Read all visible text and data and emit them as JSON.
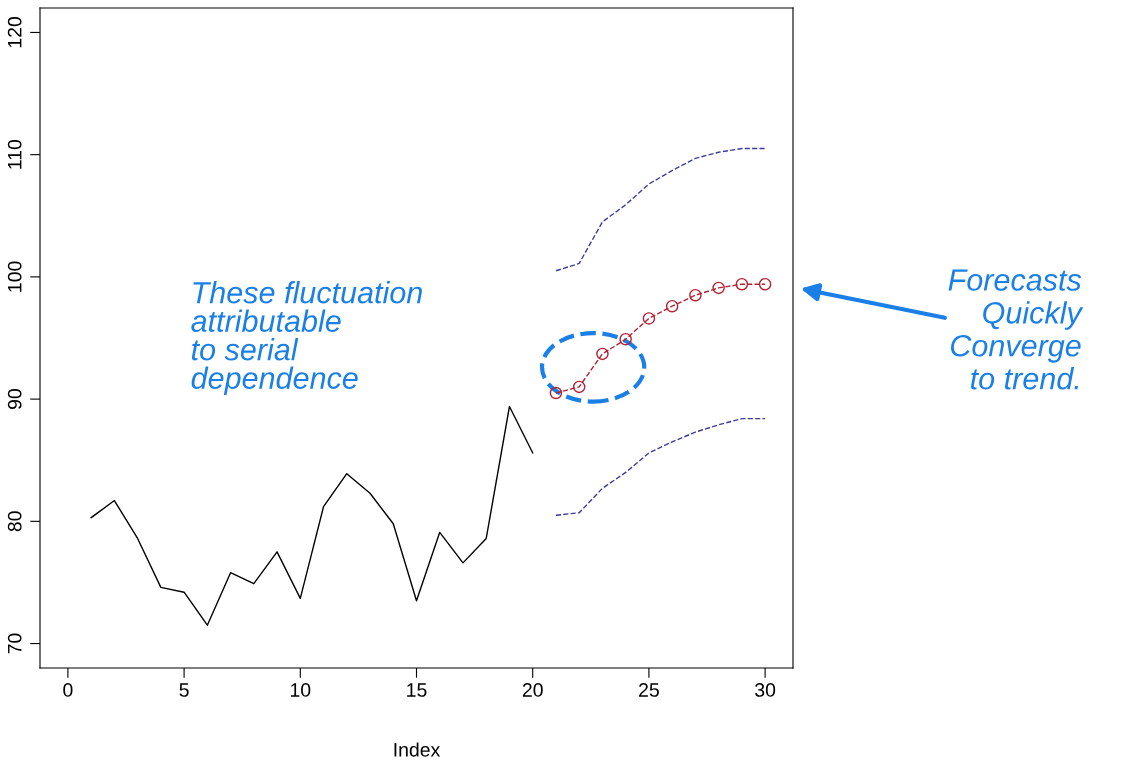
{
  "chart_data": {
    "type": "line",
    "xlabel": "Index",
    "xlim": [
      -1.2,
      31.2
    ],
    "ylim": [
      68,
      122
    ],
    "xticks": [
      0,
      5,
      10,
      15,
      20,
      25,
      30
    ],
    "yticks": [
      70,
      80,
      90,
      100,
      110,
      120
    ],
    "grid": false,
    "legend": false,
    "series": [
      {
        "color": "#000000",
        "x": [
          1,
          2,
          3,
          4,
          5,
          6,
          7,
          8,
          9,
          10,
          11,
          12,
          13,
          14,
          15,
          16,
          17,
          18,
          19,
          20
        ],
        "values": [
          80.3,
          81.7,
          78.6,
          74.6,
          74.2,
          71.5,
          75.8,
          74.9,
          77.5,
          73.7,
          81.2,
          83.9,
          82.3,
          79.8,
          73.5,
          79.1,
          76.6,
          78.6,
          89.4,
          85.6
        ],
        "marker": "none",
        "line_style": "solid"
      },
      {
        "color": "#b22234",
        "x": [
          21,
          22,
          23,
          24,
          25,
          26,
          27,
          28,
          29,
          30
        ],
        "values": [
          90.5,
          91.0,
          93.7,
          94.9,
          96.6,
          97.6,
          98.5,
          99.1,
          99.4,
          99.4
        ],
        "marker": "circle",
        "line_style": "dashed"
      },
      {
        "color": "#3c3c9a",
        "x": [
          21,
          22,
          23,
          24,
          25,
          26,
          27,
          28,
          29,
          30
        ],
        "values": [
          100.5,
          101.1,
          104.5,
          105.9,
          107.6,
          108.7,
          109.7,
          110.2,
          110.5,
          110.5
        ],
        "marker": "none",
        "line_style": "dashed"
      },
      {
        "color": "#3c3c9a",
        "x": [
          21,
          22,
          23,
          24,
          25,
          26,
          27,
          28,
          29,
          30
        ],
        "values": [
          80.5,
          80.7,
          82.7,
          84.0,
          85.6,
          86.5,
          87.3,
          87.9,
          88.4,
          88.4
        ],
        "marker": "none",
        "line_style": "dashed"
      }
    ],
    "annotations": [
      "These fluctuation\nattributable\nto serial\ndependence",
      "Forecasts\nQuickly\nConverge\nto trend."
    ]
  }
}
